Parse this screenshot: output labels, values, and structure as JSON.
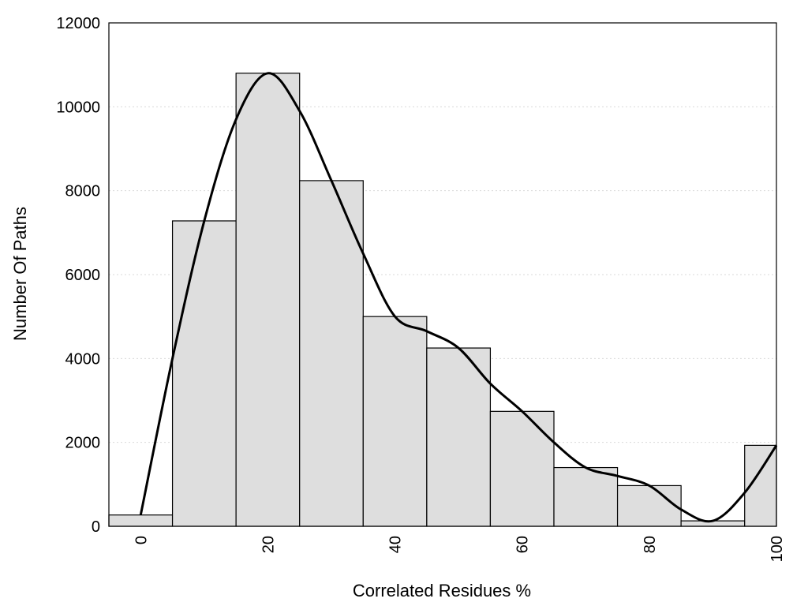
{
  "chart_data": {
    "type": "bar",
    "title": "",
    "xlabel": "Correlated Residues %",
    "ylabel": "Number Of Paths",
    "xlim": [
      -5,
      100
    ],
    "ylim": [
      0,
      12000
    ],
    "x_ticks": [
      0,
      20,
      40,
      60,
      80,
      100
    ],
    "y_ticks": [
      0,
      2000,
      4000,
      6000,
      8000,
      10000,
      12000
    ],
    "grid": "horizontal dotted",
    "bin_width": 10,
    "bars": {
      "centers": [
        0,
        10,
        20,
        30,
        40,
        50,
        60,
        70,
        80,
        90,
        100
      ],
      "values": [
        270,
        7280,
        10800,
        8240,
        5000,
        4250,
        2740,
        1400,
        970,
        130,
        1930
      ]
    },
    "curve": {
      "x": [
        0,
        5,
        10,
        15,
        20,
        25,
        30,
        35,
        40,
        45,
        50,
        55,
        60,
        65,
        70,
        75,
        80,
        85,
        90,
        95,
        100
      ],
      "y": [
        270,
        4000,
        7280,
        9700,
        10800,
        9900,
        8240,
        6500,
        5000,
        4650,
        4250,
        3400,
        2740,
        2000,
        1400,
        1200,
        970,
        400,
        130,
        800,
        1930
      ]
    },
    "colors": {
      "bar_fill": "#dedede",
      "bar_edge": "#000000",
      "curve": "#000000"
    }
  }
}
